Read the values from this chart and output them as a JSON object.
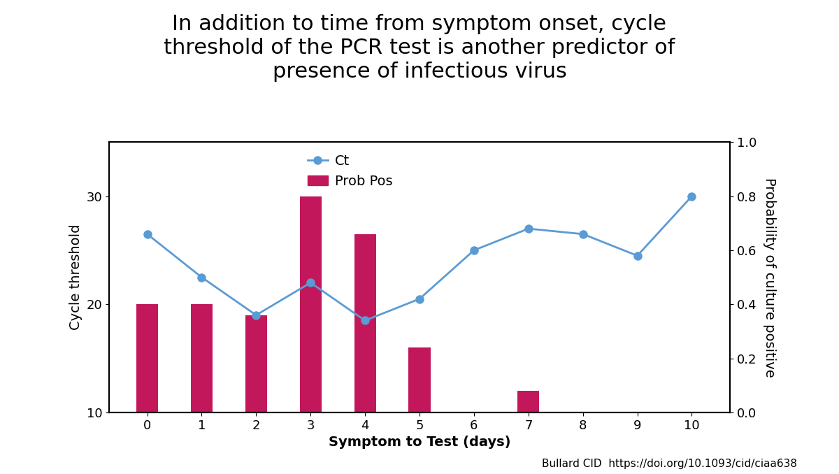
{
  "title_line1": "In addition to time from symptom onset, cycle",
  "title_line2": "threshold of the PCR test is another predictor of",
  "title_line3": "presence of infectious virus",
  "xlabel": "Symptom to Test (days)",
  "ylabel_left": "Cycle threshold",
  "ylabel_right": "Probability of culture positive",
  "citation": "Bullard CID  https://doi.org/10.1093/cid/ciaa638",
  "days": [
    0,
    1,
    2,
    3,
    4,
    5,
    6,
    7,
    8,
    9,
    10
  ],
  "ct_values": [
    26.5,
    22.5,
    19.0,
    22.0,
    18.5,
    20.5,
    25.0,
    27.0,
    26.5,
    24.5,
    30.0
  ],
  "bar_heights_ct_scale": [
    20.0,
    20.0,
    19.0,
    30.0,
    26.5,
    16.0,
    0.0,
    12.0,
    0.0,
    0.0,
    0.0
  ],
  "bar_color": "#C2185B",
  "line_color": "#5B9BD5",
  "marker_color": "#5B9BD5",
  "background_color": "#ffffff",
  "ylim_left": [
    10,
    35
  ],
  "ylim_right": [
    0.0,
    1.0
  ],
  "yticks_left": [
    10,
    20,
    30
  ],
  "yticks_right": [
    0.0,
    0.2,
    0.4,
    0.6,
    0.8,
    1.0
  ],
  "title_fontsize": 22,
  "axis_label_fontsize": 14,
  "tick_fontsize": 13,
  "legend_fontsize": 14,
  "citation_fontsize": 11,
  "bar_bottom": 10.0,
  "bar_width": 0.4
}
